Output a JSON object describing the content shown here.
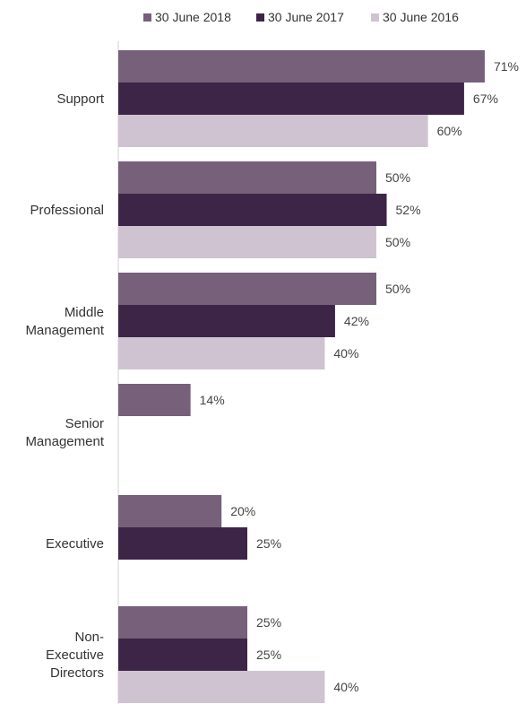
{
  "chart_data": {
    "type": "bar",
    "orientation": "horizontal",
    "categories": [
      [
        "Support"
      ],
      [
        "Professional"
      ],
      [
        "Middle",
        "Management"
      ],
      [
        "Senior",
        "Management"
      ],
      [
        "Executive"
      ],
      [
        "Non-",
        "Executive",
        "Directors"
      ]
    ],
    "series": [
      {
        "name": "30 June 2018",
        "color": "#76607a",
        "values": [
          71,
          50,
          50,
          14,
          20,
          25
        ]
      },
      {
        "name": "30 June 2017",
        "color": "#3d2548",
        "values": [
          67,
          52,
          42,
          null,
          25,
          25
        ]
      },
      {
        "name": "30 June 2016",
        "color": "#cfc3d1",
        "values": [
          60,
          50,
          40,
          null,
          null,
          40
        ]
      }
    ],
    "value_suffix": "%",
    "xlim": [
      0,
      71
    ],
    "legend_position": "top",
    "grid": false
  }
}
